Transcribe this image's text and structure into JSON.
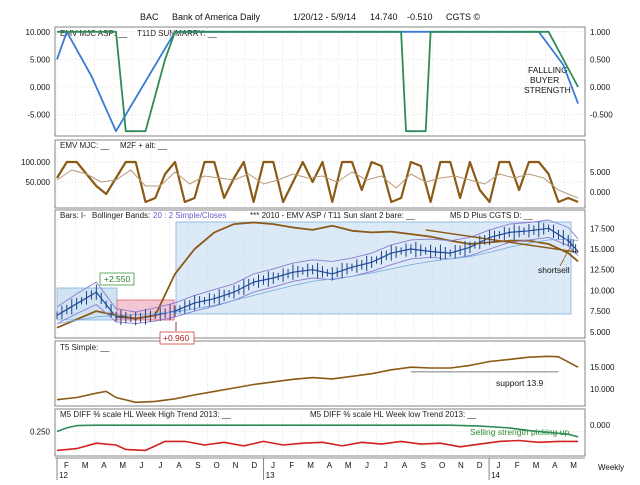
{
  "header": {
    "symbol": "BAC",
    "name": "Bank of America Daily",
    "dates": "1/20/12 - 5/9/14",
    "last": "14.740",
    "change": "-0.510",
    "brand": "CGTS ©"
  },
  "chart_data": [
    {
      "type": "line",
      "panel": "emv-mjc-asp",
      "labels": [
        "EMV MJC ASP: __",
        "T11D SUNMARRY: __"
      ],
      "annotation": "FALLLING BUYER STRENGTH",
      "left_ticks": [
        "10.000",
        "5.000",
        "0.000",
        "-5.000"
      ],
      "right_ticks": [
        "1.000",
        "0.500",
        "0.000",
        "-0.500"
      ],
      "ylim": [
        -8.5,
        10.5
      ],
      "series": [
        {
          "color": "#3a7bd5",
          "x": [
            0,
            2,
            7,
            12,
            18,
            24,
            90,
            98,
            103,
            106
          ],
          "values": [
            5,
            10,
            2,
            -8,
            1,
            10,
            10,
            10,
            4,
            -3
          ]
        },
        {
          "color": "#2e8b57",
          "x": [
            0,
            12,
            14,
            18,
            22,
            24,
            70,
            71,
            75,
            76,
            98,
            100,
            106
          ],
          "values": [
            10,
            10,
            -8,
            -8,
            5,
            10,
            10,
            -8,
            -8,
            10,
            10,
            10,
            0
          ]
        }
      ]
    },
    {
      "type": "line",
      "panel": "emv-mjc",
      "labels": [
        "EMV MJC: __",
        "M2F + alt: __"
      ],
      "left_ticks": [
        "100.000",
        "50.000"
      ],
      "right_ticks": [
        "5.000",
        "0.000"
      ],
      "ylim": [
        -10,
        130
      ],
      "series": [
        {
          "color": "#8b5a16",
          "x": [
            0,
            2,
            4,
            6,
            8,
            10,
            12,
            14,
            16,
            18,
            20,
            22,
            24,
            26,
            28,
            30,
            32,
            34,
            36,
            38,
            40,
            42,
            44,
            46,
            48,
            50,
            52,
            54,
            56,
            58,
            60,
            62,
            64,
            66,
            68,
            70,
            72,
            74,
            76,
            78,
            80,
            82,
            84,
            86,
            88,
            90,
            92,
            94,
            96,
            98,
            100,
            102,
            104,
            106
          ],
          "values": [
            60,
            100,
            100,
            70,
            40,
            20,
            60,
            100,
            100,
            0,
            10,
            70,
            100,
            0,
            10,
            100,
            100,
            10,
            60,
            100,
            0,
            100,
            100,
            0,
            50,
            100,
            50,
            100,
            0,
            100,
            100,
            30,
            100,
            90,
            0,
            10,
            100,
            90,
            0,
            100,
            100,
            10,
            100,
            30,
            0,
            100,
            100,
            30,
            100,
            100,
            70,
            0,
            10,
            0
          ]
        },
        {
          "color": "#b89b7a",
          "x": [
            0,
            3,
            6,
            9,
            12,
            15,
            18,
            21,
            24,
            27,
            30,
            33,
            36,
            39,
            42,
            45,
            48,
            51,
            54,
            57,
            60,
            63,
            66,
            69,
            72,
            75,
            78,
            81,
            84,
            87,
            90,
            93,
            96,
            99,
            102,
            106
          ],
          "values": [
            55,
            80,
            70,
            50,
            55,
            80,
            40,
            40,
            75,
            45,
            65,
            60,
            55,
            70,
            45,
            55,
            70,
            60,
            65,
            50,
            75,
            55,
            65,
            35,
            70,
            50,
            60,
            65,
            55,
            45,
            70,
            60,
            70,
            60,
            30,
            10
          ]
        }
      ]
    },
    {
      "type": "line",
      "panel": "price",
      "labels": [
        "Bars: I-",
        "Bollinger Bands:",
        "20 : 2 Simple/Closes",
        "*** 2010 - EMV ASP / T11 Sun slant 2 bare: __",
        "M5 D Plus CGTS D: __"
      ],
      "annotations": {
        "high_label": "+2.550",
        "low_label": "+0.960",
        "shortsell": "shortsell"
      },
      "right_ticks": [
        "17.500",
        "15.000",
        "12.500",
        "10.000",
        "7.500",
        "5.000"
      ],
      "ylim": [
        4.5,
        18.5
      ],
      "x": [
        0,
        4,
        8,
        12,
        16,
        20,
        24,
        28,
        32,
        36,
        40,
        44,
        48,
        52,
        56,
        60,
        64,
        68,
        72,
        76,
        80,
        84,
        88,
        92,
        96,
        100,
        104,
        106
      ],
      "series": [
        {
          "name": "",
          "color": "#1f4e9c",
          "values": [
            7.0,
            8.4,
            9.8,
            6.8,
            6.6,
            7.0,
            7.5,
            8.5,
            9.0,
            9.8,
            11.0,
            11.5,
            12.2,
            12.5,
            12.0,
            12.8,
            13.4,
            14.5,
            15.0,
            14.7,
            14.5,
            15.2,
            16.4,
            17.0,
            17.2,
            17.5,
            16.0,
            14.7
          ]
        },
        {
          "name": "",
          "color": "#8b5a16",
          "values": [
            5.5,
            6.5,
            7.5,
            7.0,
            6.6,
            7.0,
            12.0,
            15.0,
            17.0,
            18.0,
            18.2,
            18.0,
            17.6,
            17.3,
            17.8,
            17.2,
            17.0,
            17.1,
            16.8,
            16.5,
            16.0,
            15.6,
            15.8,
            16.0,
            16.0,
            15.6,
            14.5,
            13.5
          ]
        },
        {
          "name": "",
          "color": "#8b7bd0",
          "values": [
            6.0,
            7.2,
            8.3,
            6.2,
            6.0,
            6.3,
            6.8,
            7.5,
            8.1,
            8.8,
            9.8,
            10.4,
            11.1,
            11.5,
            11.3,
            11.7,
            12.3,
            13.1,
            13.8,
            14.0,
            13.8,
            14.2,
            15.0,
            15.8,
            16.1,
            16.4,
            15.4,
            14.2
          ]
        },
        {
          "name": "",
          "color": "#8b7bd0",
          "values": [
            8.0,
            9.6,
            11.0,
            7.8,
            7.4,
            7.9,
            8.5,
            9.4,
            10.1,
            10.8,
            12.0,
            12.6,
            13.3,
            13.7,
            13.5,
            13.9,
            14.5,
            15.5,
            16.1,
            16.2,
            16.0,
            16.4,
            17.3,
            18.0,
            18.2,
            18.5,
            17.6,
            16.2
          ]
        },
        {
          "name": "",
          "color": "#7fb0e0",
          "values": [
            6.0,
            6.4,
            6.8,
            7.0,
            7.1,
            7.2,
            7.4,
            7.8,
            8.2,
            8.8,
            9.4,
            10.0,
            10.6,
            11.1,
            11.4,
            11.7,
            12.1,
            12.6,
            13.1,
            13.5,
            13.8,
            14.1,
            14.6,
            15.2,
            15.7,
            16.1,
            16.2,
            16.0
          ]
        }
      ],
      "trend_line": {
        "color": "#8b5a16",
        "x": [
          75,
          106
        ],
        "values": [
          17.3,
          14.6
        ]
      }
    },
    {
      "type": "line",
      "panel": "t5-simple",
      "labels": [
        "T5 Simple: __"
      ],
      "annotation": "support 13.9",
      "right_ticks": [
        "15.000",
        "10.000"
      ],
      "ylim": [
        6.5,
        18.5
      ],
      "series": [
        {
          "color": "#8b5a16",
          "x": [
            0,
            4,
            8,
            10,
            12,
            16,
            20,
            24,
            28,
            32,
            36,
            40,
            44,
            48,
            52,
            56,
            60,
            64,
            68,
            72,
            76,
            80,
            84,
            88,
            92,
            96,
            100,
            102,
            106
          ],
          "values": [
            7.5,
            8.0,
            9.0,
            9.4,
            8.0,
            6.9,
            7.1,
            7.7,
            8.6,
            9.4,
            10.2,
            11.0,
            11.6,
            12.2,
            12.6,
            12.3,
            12.9,
            13.5,
            14.4,
            15.0,
            14.8,
            14.8,
            15.4,
            16.3,
            16.8,
            17.3,
            17.5,
            17.4,
            15.0
          ]
        },
        {
          "color": "#555555",
          "x": [
            72,
            102
          ],
          "values": [
            13.9,
            13.9
          ]
        }
      ]
    },
    {
      "type": "line",
      "panel": "m5-diff",
      "labels": [
        "M5 DIFF % scale HL Week High Trend 2013: __",
        "M5 DIFF % scale HL Week low Trend 2013: __"
      ],
      "annotation": "Selling strength picking up",
      "left_ticks": [
        "0.250"
      ],
      "right_ticks": [
        "0.000"
      ],
      "ylim": [
        -1.0,
        1.0
      ],
      "series": [
        {
          "color": "#2e8b57",
          "x": [
            0,
            2,
            4,
            8,
            30,
            60,
            80,
            86,
            92,
            96,
            100,
            104,
            106
          ],
          "values": [
            0.25,
            0.45,
            0.58,
            0.6,
            0.6,
            0.6,
            0.6,
            0.55,
            0.45,
            0.3,
            0.2,
            0.1,
            -0.05
          ]
        },
        {
          "color": "#d42020",
          "x": [
            0,
            4,
            8,
            12,
            14,
            18,
            22,
            26,
            30,
            34,
            38,
            42,
            46,
            50,
            54,
            58,
            62,
            66,
            70,
            74,
            78,
            82,
            86,
            90,
            94,
            98,
            102,
            106
          ],
          "values": [
            -0.8,
            -0.7,
            -0.4,
            -0.5,
            -0.75,
            -0.8,
            -0.3,
            -0.3,
            -0.5,
            -0.35,
            -0.55,
            -0.3,
            -0.5,
            -0.4,
            -0.35,
            -0.55,
            -0.35,
            -0.45,
            -0.3,
            -0.45,
            -0.4,
            -0.6,
            -0.45,
            -0.3,
            -0.25,
            -0.35,
            -0.3,
            -0.3
          ]
        }
      ]
    }
  ],
  "x_axis": {
    "months": [
      "F",
      "M",
      "A",
      "M",
      "J",
      "J",
      "A",
      "S",
      "O",
      "N",
      "D",
      "J",
      "F",
      "M",
      "A",
      "M",
      "J",
      "J",
      "A",
      "S",
      "O",
      "N",
      "D",
      "J",
      "F",
      "M",
      "A",
      "M"
    ],
    "years": [
      "12",
      "13",
      "14"
    ],
    "frequency": "Weekly"
  }
}
